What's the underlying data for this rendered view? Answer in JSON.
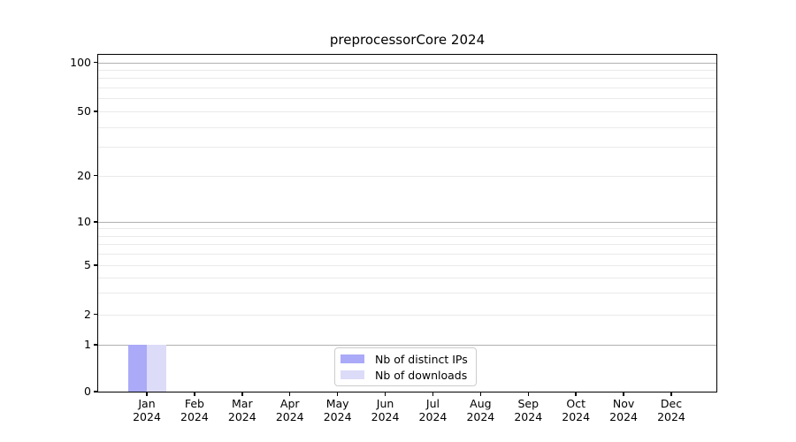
{
  "chart_data": {
    "type": "bar",
    "title": "preprocessorCore 2024",
    "categories": [
      "Jan",
      "Feb",
      "Mar",
      "Apr",
      "May",
      "Jun",
      "Jul",
      "Aug",
      "Sep",
      "Oct",
      "Nov",
      "Dec"
    ],
    "x_year": "2024",
    "series": [
      {
        "name": "Nb of distinct IPs",
        "color": "#aaaaf8",
        "values": [
          1,
          0,
          0,
          0,
          0,
          0,
          0,
          0,
          0,
          0,
          0,
          0
        ]
      },
      {
        "name": "Nb of downloads",
        "color": "#dcdcf8",
        "values": [
          1,
          0,
          0,
          0,
          0,
          0,
          0,
          0,
          0,
          0,
          0,
          0
        ]
      }
    ],
    "yscale": "asinh",
    "ylim": [
      0,
      113
    ],
    "y_ticks": [
      0,
      1,
      2,
      5,
      10,
      20,
      50,
      100
    ],
    "y_major_gridlines": [
      1,
      10,
      100
    ],
    "y_minor_gridlines": [
      2,
      3,
      4,
      5,
      6,
      7,
      8,
      9,
      20,
      30,
      40,
      50,
      60,
      70,
      80,
      90
    ],
    "grid": true,
    "legend_position": "lower center"
  },
  "colors": {
    "bar_distinct_ips": "#aaaaf8",
    "bar_downloads": "#dcdcf8",
    "major_grid": "#b0b0b0",
    "minor_grid": "#eaeaea",
    "axis": "#000000",
    "background": "#ffffff",
    "legend_border": "#cccccc"
  }
}
